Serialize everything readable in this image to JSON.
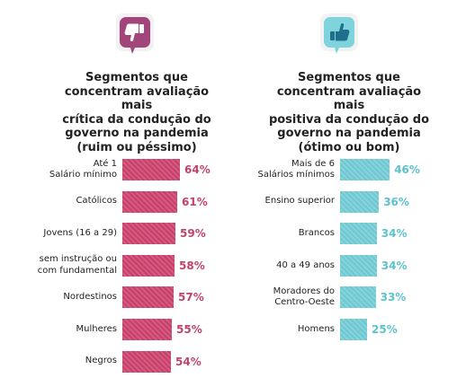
{
  "colors": {
    "critical_accent": "#c83f6a",
    "critical_icon_bg": "#a2457a",
    "positive_accent": "#6ec8d2",
    "positive_icon_bg": "#7fd3dc",
    "icon_panel_bg": "#f2f2f2"
  },
  "icons": {
    "left": "thumbs-down-icon",
    "right": "thumbs-up-icon"
  },
  "chart_data": [
    {
      "type": "bar",
      "orientation": "horizontal",
      "title_lines": [
        "Segmentos que",
        "concentram avaliação mais",
        "crítica da condução do",
        "governo na pandemia",
        "(ruim ou péssimo)"
      ],
      "categories": [
        [
          "Até 1",
          "Salário mínimo"
        ],
        [
          "Católicos"
        ],
        [
          "Jovens (16 a 29)"
        ],
        [
          "sem instrução ou",
          "com fundamental"
        ],
        [
          "Nordestinos"
        ],
        [
          "Mulheres"
        ],
        [
          "Negros"
        ]
      ],
      "values": [
        64,
        61,
        59,
        58,
        57,
        55,
        54
      ],
      "value_labels": [
        "64%",
        "61%",
        "59%",
        "58%",
        "57%",
        "55%",
        "54%"
      ],
      "unit": "%"
    },
    {
      "type": "bar",
      "orientation": "horizontal",
      "title_lines": [
        "Segmentos que",
        "concentram avaliação mais",
        "positiva da condução do",
        "governo na pandemia",
        "(ótimo ou bom)"
      ],
      "categories": [
        [
          "Mais de 6",
          "Salários mínimos"
        ],
        [
          "Ensino superior"
        ],
        [
          "Brancos"
        ],
        [
          "40 a 49 anos"
        ],
        [
          "Moradores do",
          "Centro-Oeste"
        ],
        [
          "Homens"
        ]
      ],
      "values": [
        46,
        36,
        34,
        34,
        33,
        25
      ],
      "value_labels": [
        "46%",
        "36%",
        "34%",
        "34%",
        "33%",
        "25%"
      ],
      "unit": "%"
    }
  ]
}
